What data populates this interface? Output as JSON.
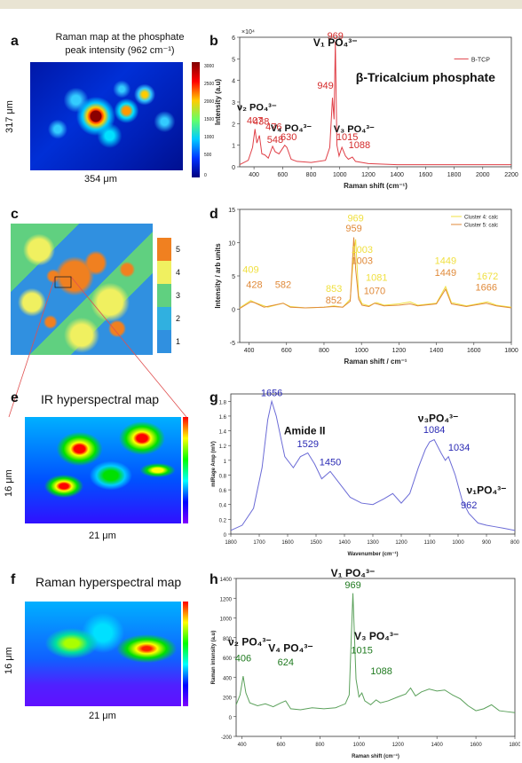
{
  "panels": {
    "a": {
      "label": "a",
      "title_line1": "Raman map at the phosphate",
      "title_line2": "peak intensity (962 cm⁻¹)",
      "width_label": "354 μm",
      "height_label": "317 μm",
      "colorbar_ticks": [
        "3000",
        "2500",
        "2000",
        "1500",
        "1000",
        "500",
        "0"
      ]
    },
    "c": {
      "label": "c",
      "colorbar_ticks": [
        "5",
        "4",
        "3",
        "2",
        "1"
      ]
    },
    "e": {
      "label": "e",
      "title": "IR hyperspectral map",
      "width_label": "21 μm",
      "height_label": "16 μm"
    },
    "f": {
      "label": "f",
      "title": "Raman hyperspectral map",
      "width_label": "21 μm",
      "height_label": "16 μm"
    }
  },
  "chart_data": [
    {
      "panel": "b",
      "type": "line",
      "xlabel": "Raman shift (cm⁻¹)",
      "ylabel": "Intensity (a.u)",
      "y_multiplier": "×10⁴",
      "xlim": [
        300,
        2200
      ],
      "ylim": [
        0,
        6
      ],
      "xticks": [
        400,
        600,
        800,
        1000,
        1200,
        1400,
        1600,
        1800,
        2000,
        2200
      ],
      "yticks": [
        0,
        1,
        2,
        3,
        4,
        5,
        6
      ],
      "legend": "B-TCP",
      "legend_position": "top-right",
      "series": [
        {
          "name": "B-TCP",
          "x": [
            300,
            360,
            390,
            407,
            420,
            438,
            455,
            476,
            500,
            530,
            548,
            575,
            600,
            615,
            630,
            660,
            700,
            800,
            900,
            930,
            949,
            960,
            969,
            980,
            995,
            1015,
            1040,
            1060,
            1088,
            1110,
            1200,
            1400,
            1600,
            1800,
            2000,
            2200
          ],
          "y": [
            0.1,
            0.3,
            0.9,
            1.75,
            1.1,
            1.45,
            0.6,
            0.55,
            0.4,
            0.95,
            0.7,
            0.6,
            0.85,
            1.0,
            0.9,
            0.35,
            0.25,
            0.2,
            0.3,
            0.9,
            3.2,
            2.2,
            5.8,
            1.0,
            0.5,
            0.9,
            0.5,
            0.35,
            0.45,
            0.25,
            0.15,
            0.1,
            0.1,
            0.1,
            0.1,
            0.1
          ]
        }
      ],
      "annotations": [
        {
          "text": "407",
          "x": 407
        },
        {
          "text": "438",
          "x": 438
        },
        {
          "text": "476",
          "x": 476
        },
        {
          "text": "548",
          "x": 548
        },
        {
          "text": "630",
          "x": 630
        },
        {
          "text": "949",
          "x": 949
        },
        {
          "text": "969",
          "x": 969
        },
        {
          "text": "1015",
          "x": 1015
        },
        {
          "text": "1088",
          "x": 1088
        }
      ],
      "labels": {
        "v1": "V₁ PO₄³⁻",
        "v2": "ν₂ PO₄³⁻",
        "v3": "V₃ PO₄³⁻",
        "v4": "V₄ PO₄³⁻",
        "compound": "β-Tricalcium phosphate"
      },
      "colors": {
        "line": "#e04048",
        "annotation": "#d42a2a"
      }
    },
    {
      "panel": "d",
      "type": "line",
      "xlabel": "Raman shift / cm⁻¹",
      "ylabel": "Intensity / arb units",
      "xlim": [
        350,
        1800
      ],
      "ylim": [
        -5,
        15
      ],
      "xticks": [
        400,
        600,
        800,
        1000,
        1200,
        1400,
        1600,
        1800
      ],
      "yticks": [
        -5,
        0,
        5,
        10,
        15
      ],
      "legend_position": "top-right",
      "series": [
        {
          "name": "Cluster 4: calc",
          "color": "#f0e040",
          "x": [
            350,
            409,
            430,
            500,
            582,
            620,
            700,
            800,
            853,
            900,
            940,
            959,
            969,
            985,
            1003,
            1040,
            1070,
            1081,
            1120,
            1200,
            1260,
            1300,
            1400,
            1449,
            1480,
            1560,
            1600,
            1672,
            1720,
            1800
          ],
          "y": [
            0.2,
            1.3,
            1.0,
            0.3,
            0.9,
            0.4,
            0.2,
            0.3,
            0.5,
            0.3,
            1.5,
            8.5,
            10.5,
            2.0,
            0.8,
            0.5,
            0.9,
            1.0,
            0.6,
            0.8,
            1.1,
            0.6,
            0.9,
            3.4,
            1.0,
            0.5,
            0.7,
            1.1,
            0.6,
            0.3
          ]
        },
        {
          "name": "Cluster 5: calc",
          "color": "#e08a3a",
          "x": [
            350,
            409,
            428,
            480,
            582,
            620,
            700,
            800,
            852,
            900,
            940,
            959,
            969,
            985,
            1003,
            1040,
            1070,
            1120,
            1200,
            1260,
            1300,
            1400,
            1449,
            1480,
            1560,
            1600,
            1666,
            1720,
            1800
          ],
          "y": [
            0.1,
            1.1,
            1.0,
            0.3,
            0.9,
            0.3,
            0.2,
            0.3,
            0.4,
            0.3,
            1.2,
            10.8,
            6.0,
            1.5,
            0.6,
            0.4,
            0.9,
            0.5,
            0.6,
            0.8,
            0.5,
            0.8,
            3.0,
            0.8,
            0.4,
            0.6,
            0.9,
            0.5,
            0.2
          ]
        }
      ],
      "annotations": [
        {
          "text": "409",
          "x": 409,
          "color": "#f0e040"
        },
        {
          "text": "428",
          "x": 428,
          "color": "#e08a3a"
        },
        {
          "text": "582",
          "x": 582,
          "color": "#e08a3a"
        },
        {
          "text": "853",
          "x": 853,
          "color": "#f0e040"
        },
        {
          "text": "852",
          "x": 852,
          "color": "#e08a3a"
        },
        {
          "text": "969",
          "x": 969,
          "color": "#f0e040"
        },
        {
          "text": "959",
          "x": 959,
          "color": "#e08a3a"
        },
        {
          "text": "1003",
          "x": 1003,
          "color": "#f0e040"
        },
        {
          "text": "1003",
          "x": 1003,
          "color": "#e08a3a"
        },
        {
          "text": "1070",
          "x": 1070,
          "color": "#e08a3a"
        },
        {
          "text": "1081",
          "x": 1081,
          "color": "#f0e040"
        },
        {
          "text": "1449",
          "x": 1449,
          "color": "#f0e040"
        },
        {
          "text": "1449",
          "x": 1449,
          "color": "#e08a3a"
        },
        {
          "text": "1672",
          "x": 1672,
          "color": "#f0e040"
        },
        {
          "text": "1666",
          "x": 1666,
          "color": "#e08a3a"
        }
      ]
    },
    {
      "panel": "g",
      "type": "line",
      "xlabel": "Wavenumber (cm⁻¹)",
      "ylabel": "mIRage Amp (mV)",
      "xlim": [
        1800,
        800
      ],
      "ylim": [
        0,
        1.9
      ],
      "xticks": [
        1800,
        1700,
        1600,
        1500,
        1400,
        1300,
        1200,
        1100,
        1000,
        900,
        800
      ],
      "yticks": [
        0,
        0.2,
        0.4,
        0.6,
        0.8,
        1,
        1.2,
        1.4,
        1.6,
        1.8
      ],
      "series": [
        {
          "name": "IR spectrum",
          "color": "#6b6bd6",
          "x": [
            1800,
            1760,
            1720,
            1690,
            1670,
            1656,
            1640,
            1610,
            1580,
            1555,
            1529,
            1505,
            1480,
            1465,
            1450,
            1420,
            1380,
            1340,
            1300,
            1260,
            1230,
            1200,
            1170,
            1140,
            1115,
            1100,
            1084,
            1060,
            1045,
            1034,
            1010,
            985,
            962,
            930,
            900,
            870,
            840,
            800
          ],
          "y": [
            0.05,
            0.12,
            0.35,
            0.9,
            1.55,
            1.8,
            1.6,
            1.05,
            0.9,
            1.05,
            1.1,
            0.95,
            0.75,
            0.8,
            0.85,
            0.7,
            0.5,
            0.42,
            0.4,
            0.48,
            0.55,
            0.42,
            0.55,
            0.9,
            1.15,
            1.25,
            1.28,
            1.1,
            1.0,
            1.05,
            0.8,
            0.45,
            0.28,
            0.15,
            0.12,
            0.1,
            0.08,
            0.05
          ]
        }
      ],
      "annotations": [
        {
          "text": "1656",
          "x": 1656
        },
        {
          "text": "1529",
          "x": 1529
        },
        {
          "text": "1450",
          "x": 1450
        },
        {
          "text": "1084",
          "x": 1084
        },
        {
          "text": "1034",
          "x": 1034
        },
        {
          "text": "962",
          "x": 962
        }
      ],
      "labels": {
        "amide1": "Amide I",
        "amide2": "Amide II",
        "v3": "ν₃PO₄³⁻",
        "v1": "ν₁PO₄³⁻"
      },
      "colors": {
        "annotation": "#2a2ab4"
      }
    },
    {
      "panel": "h",
      "type": "line",
      "xlabel": "Raman shift (cm⁻¹)",
      "ylabel": "Raman intensity (a.u)",
      "xlim": [
        370,
        1800
      ],
      "ylim": [
        -200,
        1400
      ],
      "xticks": [
        400,
        600,
        800,
        1000,
        1200,
        1400,
        1600,
        1800
      ],
      "yticks": [
        -200,
        0,
        200,
        400,
        600,
        800,
        1000,
        1200,
        1400
      ],
      "series": [
        {
          "name": "Raman spectrum",
          "color": "#5aa05a",
          "x": [
            370,
            390,
            406,
            420,
            440,
            480,
            520,
            560,
            600,
            624,
            650,
            700,
            760,
            820,
            880,
            930,
            950,
            969,
            985,
            1000,
            1015,
            1030,
            1060,
            1088,
            1110,
            1150,
            1200,
            1240,
            1265,
            1290,
            1320,
            1360,
            1400,
            1440,
            1480,
            1520,
            1560,
            1600,
            1640,
            1680,
            1720,
            1760,
            1800
          ],
          "y": [
            120,
            220,
            410,
            240,
            140,
            110,
            130,
            100,
            140,
            160,
            80,
            70,
            90,
            80,
            90,
            130,
            220,
            1250,
            380,
            200,
            240,
            160,
            120,
            170,
            140,
            160,
            200,
            230,
            290,
            210,
            250,
            280,
            260,
            270,
            220,
            180,
            110,
            60,
            80,
            120,
            60,
            50,
            40
          ]
        }
      ],
      "annotations": [
        {
          "text": "406",
          "x": 406
        },
        {
          "text": "624",
          "x": 624
        },
        {
          "text": "969",
          "x": 969
        },
        {
          "text": "1015",
          "x": 1015
        },
        {
          "text": "1088",
          "x": 1088
        }
      ],
      "labels": {
        "v1": "V₁ PO₄³⁻",
        "v2": "ν₂ PO₄³⁻",
        "v3": "V₃ PO₄³⁻",
        "v4": "V₄ PO₄³⁻"
      },
      "colors": {
        "annotation": "#1f7a1f"
      }
    }
  ]
}
